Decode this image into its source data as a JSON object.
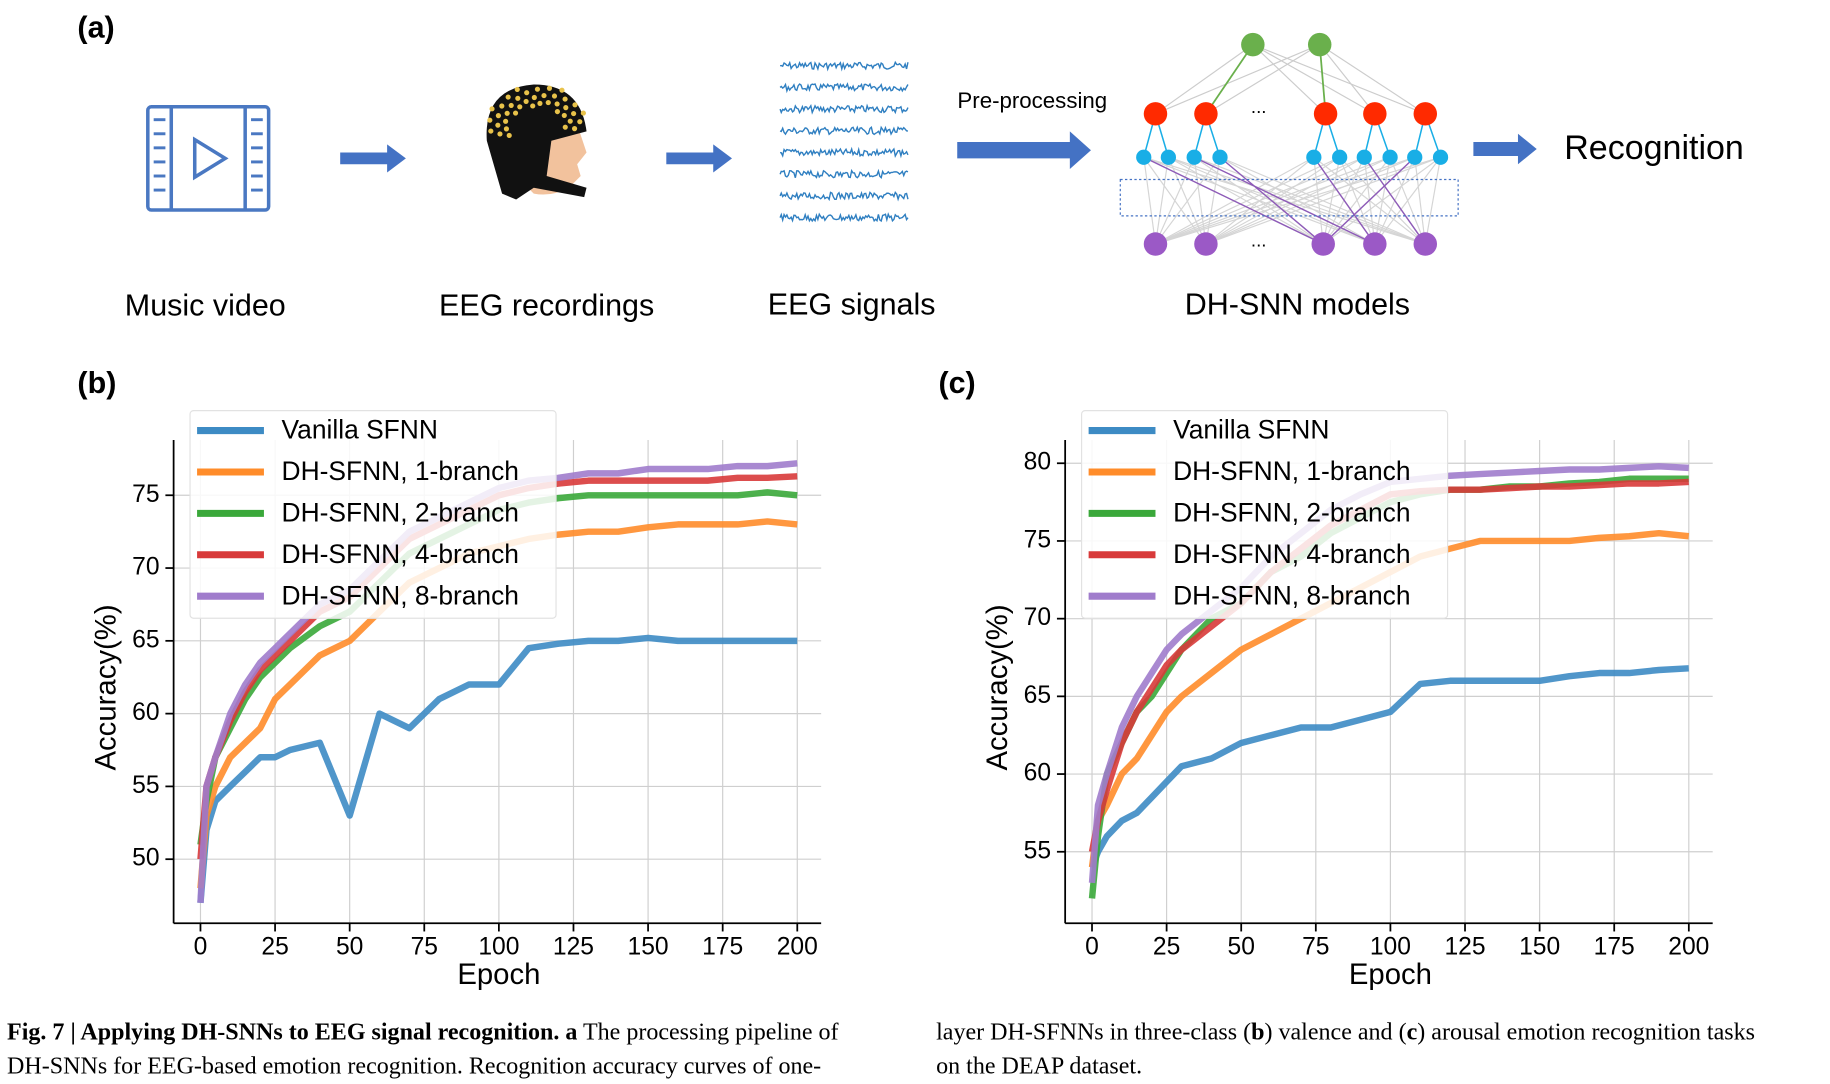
{
  "panel_labels": [
    "(a)",
    "(b)",
    "(c)"
  ],
  "pipeline": {
    "steps": [
      "Music video",
      "EEG recordings",
      "EEG signals",
      "DH-SNN models"
    ],
    "arrow_label": "Pre-processing",
    "output": "Recognition",
    "ellipsis": "..."
  },
  "chart_data": [
    {
      "type": "line",
      "xlabel": "Epoch",
      "ylabel": "Accuracy(%)",
      "x": [
        0,
        2,
        5,
        10,
        15,
        20,
        25,
        30,
        40,
        50,
        60,
        70,
        80,
        90,
        100,
        110,
        120,
        130,
        140,
        150,
        160,
        170,
        180,
        190,
        200
      ],
      "xlim": [
        -9,
        208
      ],
      "xticks": [
        0,
        25,
        50,
        75,
        100,
        125,
        150,
        175,
        200
      ],
      "ylim": [
        45.6,
        78.8
      ],
      "yticks": [
        50,
        55,
        60,
        65,
        70,
        75
      ],
      "grid": true,
      "legend": "upper left",
      "series": [
        {
          "name": "Vanilla SFNN",
          "color": "#3d8bc4",
          "values": [
            47,
            52,
            54,
            55,
            56,
            57,
            57,
            57.5,
            58,
            53,
            60,
            59,
            61,
            62,
            62,
            64.5,
            64.8,
            65,
            65,
            65.2,
            65,
            65,
            65,
            65,
            65
          ]
        },
        {
          "name": "DH-SFNN, 1-branch",
          "color": "#ff8c2a",
          "values": [
            48,
            53,
            55,
            57,
            58,
            59,
            61,
            62,
            64,
            65,
            67,
            69,
            70,
            71,
            71.5,
            72,
            72.3,
            72.5,
            72.5,
            72.8,
            73,
            73,
            73,
            73.2,
            73
          ]
        },
        {
          "name": "DH-SFNN, 2-branch",
          "color": "#3aa83a",
          "values": [
            51,
            54,
            57,
            59,
            61,
            62.5,
            63.5,
            64.5,
            66,
            67,
            69,
            71,
            72,
            73,
            74,
            74.5,
            74.8,
            75,
            75,
            75,
            75,
            75,
            75,
            75.2,
            75
          ]
        },
        {
          "name": "DH-SFNN, 4-branch",
          "color": "#d83a3a",
          "values": [
            50,
            55,
            57,
            59.5,
            61.5,
            63,
            64,
            65,
            67,
            68,
            70,
            72,
            73,
            74,
            75,
            75.5,
            75.8,
            76,
            76,
            76,
            76,
            76,
            76.2,
            76.2,
            76.3
          ]
        },
        {
          "name": "DH-SFNN, 8-branch",
          "color": "#a07ccc",
          "values": [
            47,
            55,
            57,
            60,
            62,
            63.5,
            64.5,
            65.5,
            67.5,
            68.5,
            70.5,
            72.5,
            73.5,
            74.5,
            75.5,
            76,
            76.2,
            76.5,
            76.5,
            76.8,
            76.8,
            76.8,
            77,
            77,
            77.2
          ]
        }
      ]
    },
    {
      "type": "line",
      "xlabel": "Epoch",
      "ylabel": "Accuracy(%)",
      "x": [
        0,
        2,
        5,
        10,
        15,
        20,
        25,
        30,
        40,
        50,
        60,
        70,
        80,
        90,
        100,
        110,
        120,
        130,
        140,
        150,
        160,
        170,
        180,
        190,
        200
      ],
      "xlim": [
        -9,
        208
      ],
      "xticks": [
        0,
        25,
        50,
        75,
        100,
        125,
        150,
        175,
        200
      ],
      "ylim": [
        50.4,
        81.5
      ],
      "yticks": [
        55,
        60,
        65,
        70,
        75,
        80
      ],
      "grid": true,
      "legend": "upper left",
      "series": [
        {
          "name": "Vanilla SFNN",
          "color": "#3d8bc4",
          "values": [
            54,
            55,
            56,
            57,
            57.5,
            58.5,
            59.5,
            60.5,
            61,
            62,
            62.5,
            63,
            63,
            63.5,
            64,
            65.8,
            66,
            66,
            66,
            66,
            66.3,
            66.5,
            66.5,
            66.7,
            66.8
          ]
        },
        {
          "name": "DH-SFNN, 1-branch",
          "color": "#ff8c2a",
          "values": [
            54,
            57,
            58,
            60,
            61,
            62.5,
            64,
            65,
            66.5,
            68,
            69,
            70,
            71,
            72,
            73,
            74,
            74.5,
            75,
            75,
            75,
            75,
            75.2,
            75.3,
            75.5,
            75.3
          ]
        },
        {
          "name": "DH-SFNN, 2-branch",
          "color": "#3aa83a",
          "values": [
            52,
            56,
            60,
            62,
            64,
            65,
            66.5,
            68,
            70,
            71,
            73,
            74,
            75.5,
            76.5,
            77.5,
            78,
            78.3,
            78.3,
            78.5,
            78.5,
            78.7,
            78.8,
            79,
            79,
            79
          ]
        },
        {
          "name": "DH-SFNN, 4-branch",
          "color": "#d83a3a",
          "values": [
            55,
            57,
            59,
            62,
            64,
            65.5,
            67,
            68,
            69.5,
            71,
            73,
            74.5,
            76,
            77,
            78,
            78.2,
            78.3,
            78.3,
            78.4,
            78.5,
            78.5,
            78.6,
            78.7,
            78.7,
            78.8
          ]
        },
        {
          "name": "DH-SFNN, 8-branch",
          "color": "#a07ccc",
          "values": [
            53,
            58,
            60,
            63,
            65,
            66.5,
            68,
            69,
            70.5,
            72,
            74,
            75.5,
            77,
            78,
            78.8,
            79,
            79.2,
            79.3,
            79.4,
            79.5,
            79.6,
            79.6,
            79.7,
            79.8,
            79.7
          ]
        }
      ]
    }
  ],
  "caption": {
    "parts": [
      "Fig. 7 | Applying DH-SNNs to EEG signal recognition.",
      "a",
      " The processing pipeline of",
      "DH-SNNs for EEG-based emotion recognition. Recognition accuracy curves of one-",
      "layer DH-SFNNs in three-class (",
      "b",
      ") valence and (",
      "c",
      ") arousal emotion recognition tasks",
      "on the DEAP dataset."
    ]
  }
}
